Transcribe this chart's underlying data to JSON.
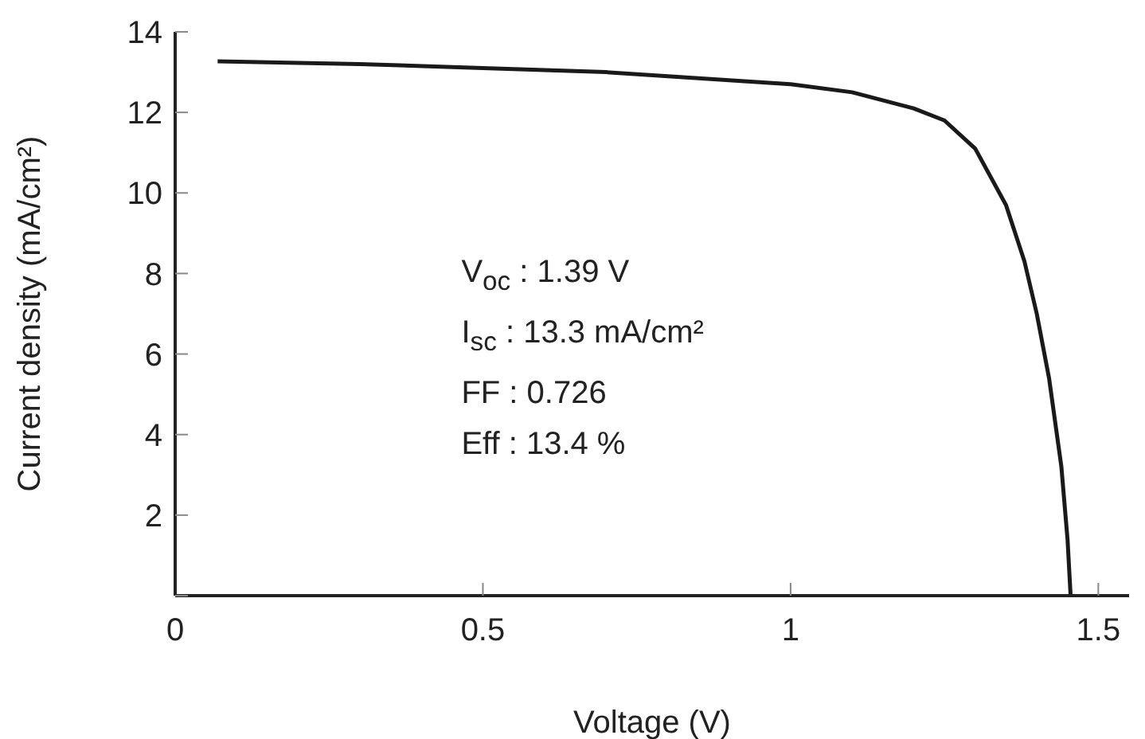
{
  "chart_data": {
    "type": "line",
    "xlabel": "Voltage (V)",
    "ylabel": "Current density (mA/cm²)",
    "x": [
      0.069,
      0.3,
      0.5,
      0.7,
      0.9,
      1.0,
      1.1,
      1.2,
      1.25,
      1.3,
      1.35,
      1.38,
      1.4,
      1.42,
      1.44,
      1.45,
      1.455
    ],
    "series": [
      {
        "color": "#1a1a1a",
        "values": [
          13.27,
          13.2,
          13.1,
          13.0,
          12.8,
          12.7,
          12.5,
          12.1,
          11.8,
          11.1,
          9.7,
          8.3,
          7.0,
          5.4,
          3.2,
          1.4,
          0
        ]
      }
    ],
    "xlim": [
      0,
      1.55
    ],
    "xticks": [
      0,
      0.5,
      1,
      1.5
    ],
    "ylim": [
      0,
      14
    ],
    "yticks": [
      {
        "value": 0,
        "label": null
      },
      2,
      4,
      6,
      8,
      10,
      12,
      14
    ],
    "grid": false,
    "legend": false,
    "marker": "none",
    "line_style": "solid",
    "annotations": [
      "V$_{oc}$ : 1.39 V",
      "I$_{sc}$ : 13.3 mA/cm²",
      "FF : 0.726",
      "Eff : 13.4 %"
    ]
  }
}
